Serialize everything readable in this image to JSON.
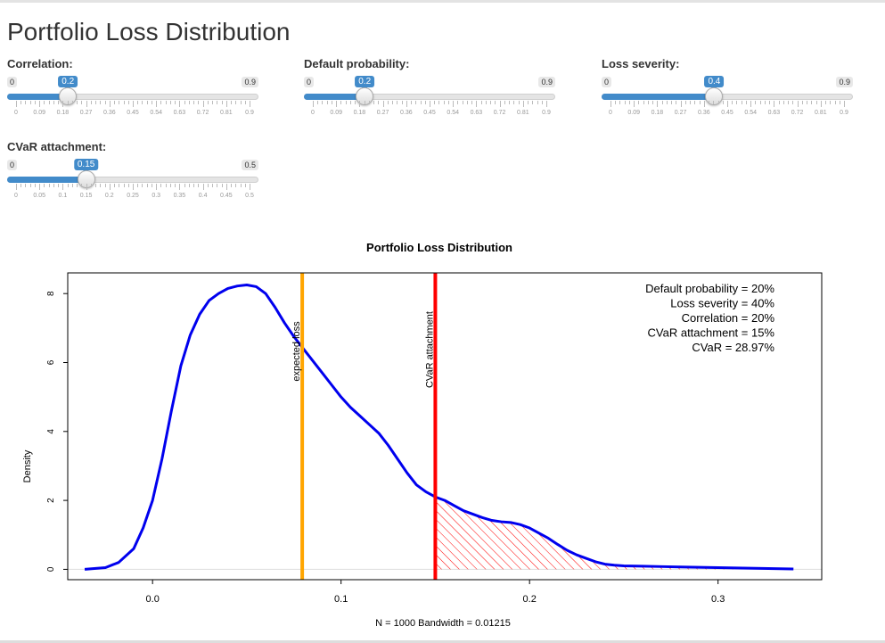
{
  "page": {
    "title": "Portfolio Loss Distribution"
  },
  "sliders": [
    {
      "id": "correlation",
      "label": "Correlation:",
      "min": "0",
      "max": "0.9",
      "value": "0.2",
      "fraction": 0.2222,
      "ticks": [
        "0",
        "0.09",
        "0.18",
        "0.27",
        "0.36",
        "0.45",
        "0.54",
        "0.63",
        "0.72",
        "0.81",
        "0.9"
      ]
    },
    {
      "id": "default-probability",
      "label": "Default probability:",
      "min": "0",
      "max": "0.9",
      "value": "0.2",
      "fraction": 0.2222,
      "ticks": [
        "0",
        "0.09",
        "0.18",
        "0.27",
        "0.36",
        "0.45",
        "0.54",
        "0.63",
        "0.72",
        "0.81",
        "0.9"
      ]
    },
    {
      "id": "loss-severity",
      "label": "Loss severity:",
      "min": "0",
      "max": "0.9",
      "value": "0.4",
      "fraction": 0.4444,
      "ticks": [
        "0",
        "0.09",
        "0.18",
        "0.27",
        "0.36",
        "0.45",
        "0.54",
        "0.63",
        "0.72",
        "0.81",
        "0.9"
      ]
    },
    {
      "id": "cvar-attachment",
      "label": "CVaR attachment:",
      "min": "0",
      "max": "0.5",
      "value": "0.15",
      "fraction": 0.3,
      "ticks": [
        "0",
        "0.05",
        "0.1",
        "0.15",
        "0.2",
        "0.25",
        "0.3",
        "0.35",
        "0.4",
        "0.45",
        "0.5"
      ]
    }
  ],
  "colors": {
    "accent": "#428bca",
    "density_line": "#0000ee",
    "expected_loss": "#ffa500",
    "cvar_line": "#ff0000",
    "hatch": "#ff0000"
  },
  "chart_data": {
    "type": "line",
    "title": "Portfolio Loss Distribution",
    "xlabel": "N = 1000   Bandwidth = 0.01215",
    "ylabel": "Density",
    "xlim": [
      -0.045,
      0.355
    ],
    "ylim": [
      -0.3,
      8.6
    ],
    "x_ticks": [
      "0.0",
      "0.1",
      "0.2",
      "0.3"
    ],
    "x_tick_values": [
      0.0,
      0.1,
      0.2,
      0.3
    ],
    "y_ticks": [
      "0",
      "2",
      "4",
      "6",
      "8"
    ],
    "y_tick_values": [
      0,
      2,
      4,
      6,
      8
    ],
    "series": [
      {
        "x": [
          -0.036,
          -0.025,
          -0.018,
          -0.01,
          -0.005,
          0.0,
          0.005,
          0.01,
          0.015,
          0.02,
          0.025,
          0.03,
          0.035,
          0.04,
          0.045,
          0.05,
          0.055,
          0.06,
          0.065,
          0.07,
          0.075,
          0.08,
          0.085,
          0.09,
          0.095,
          0.1,
          0.105,
          0.11,
          0.115,
          0.12,
          0.125,
          0.13,
          0.135,
          0.14,
          0.145,
          0.15,
          0.155,
          0.16,
          0.165,
          0.17,
          0.175,
          0.18,
          0.185,
          0.19,
          0.195,
          0.2,
          0.205,
          0.21,
          0.215,
          0.22,
          0.225,
          0.23,
          0.235,
          0.24,
          0.245,
          0.25,
          0.26,
          0.27,
          0.28,
          0.29,
          0.3,
          0.31,
          0.32,
          0.33,
          0.34
        ],
        "y": [
          0.0,
          0.05,
          0.2,
          0.6,
          1.2,
          2.0,
          3.2,
          4.6,
          5.9,
          6.8,
          7.4,
          7.8,
          8.0,
          8.15,
          8.22,
          8.25,
          8.2,
          8.0,
          7.6,
          7.15,
          6.75,
          6.4,
          6.05,
          5.7,
          5.35,
          5.0,
          4.7,
          4.45,
          4.2,
          3.95,
          3.6,
          3.2,
          2.8,
          2.45,
          2.25,
          2.1,
          2.0,
          1.85,
          1.7,
          1.6,
          1.5,
          1.42,
          1.38,
          1.36,
          1.3,
          1.2,
          1.05,
          0.9,
          0.72,
          0.55,
          0.42,
          0.32,
          0.22,
          0.15,
          0.12,
          0.1,
          0.09,
          0.08,
          0.07,
          0.06,
          0.05,
          0.04,
          0.03,
          0.02,
          0.01
        ]
      }
    ],
    "vlines": [
      {
        "x": 0.0794,
        "label": "expected loss",
        "color": "#ffa500"
      },
      {
        "x": 0.15,
        "label": "CVaR attachment",
        "color": "#ff0000"
      }
    ],
    "shade_from": 0.15,
    "legend_lines": [
      "Default probability = 20%",
      "Loss severity = 40%",
      "Correlation = 20%",
      "CVaR attachment = 15%",
      "CVaR = 28.97%"
    ],
    "legend_position": "top-right"
  }
}
